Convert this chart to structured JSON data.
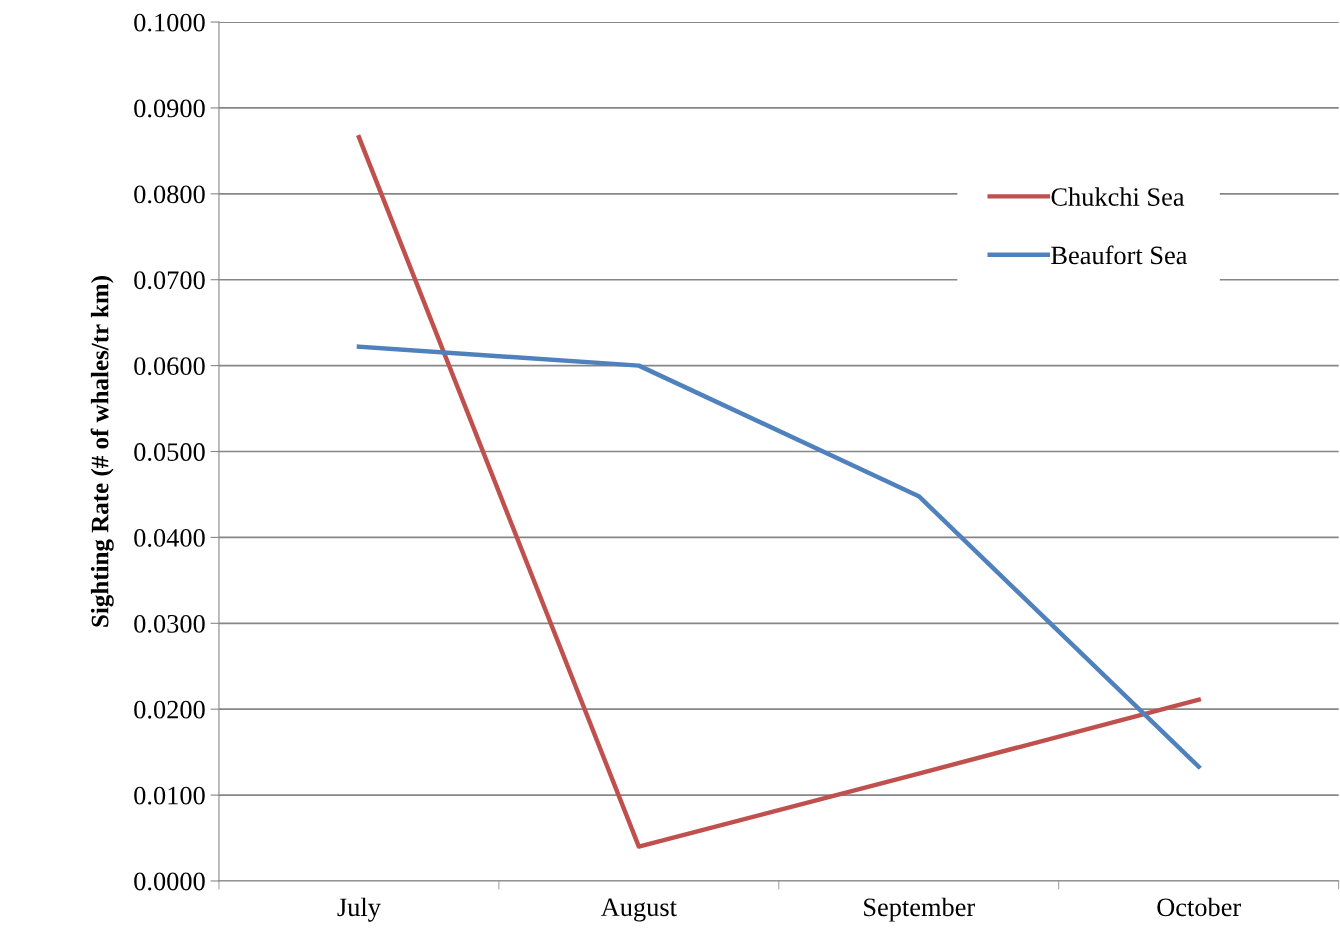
{
  "chart_data": {
    "type": "line",
    "ylabel": "Sighting Rate (# of whales/tr km)",
    "categories": [
      "July",
      "August",
      "September",
      "October"
    ],
    "series": [
      {
        "name": "Chukchi Sea",
        "color": "#c0504d",
        "values": [
          0.0866,
          0.004,
          0.0125,
          0.0211
        ]
      },
      {
        "name": "Beaufort Sea",
        "color": "#4f81bd",
        "values": [
          0.0622,
          0.06,
          0.0448,
          0.0133
        ]
      }
    ],
    "ylim": [
      0,
      0.1
    ],
    "yticks": [
      {
        "value": 0,
        "label": "0.0000"
      },
      {
        "value": 0.01,
        "label": "0.0100"
      },
      {
        "value": 0.02,
        "label": "0.0200"
      },
      {
        "value": 0.03,
        "label": "0.0300"
      },
      {
        "value": 0.04,
        "label": "0.0400"
      },
      {
        "value": 0.05,
        "label": "0.0500"
      },
      {
        "value": 0.06,
        "label": "0.0600"
      },
      {
        "value": 0.07,
        "label": "0.0700"
      },
      {
        "value": 0.08,
        "label": "0.0800"
      },
      {
        "value": 0.09,
        "label": "0.0900"
      },
      {
        "value": 0.1,
        "label": "0.1000"
      }
    ],
    "grid": "y",
    "legend": "top right",
    "marker": "none",
    "line_style": "solid"
  }
}
